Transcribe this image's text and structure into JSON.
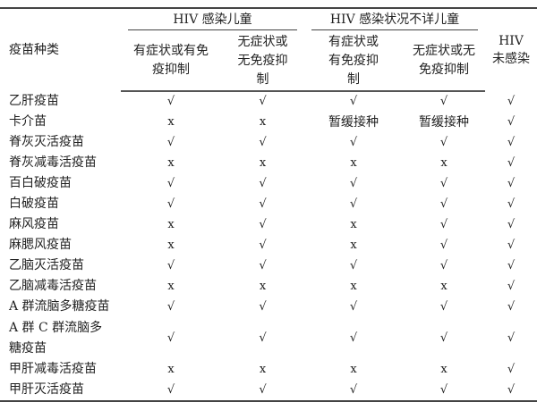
{
  "header": {
    "vaccine_col": "疫苗种类",
    "groups": [
      "HIV 感染儿童",
      "HIV 感染状况不详儿童"
    ],
    "subcols": [
      "有症状或有免疫抑制",
      "无症状或无免疫抑制",
      "有症状或有免疫抑制",
      "无症状或无免疫抑制"
    ],
    "uninfected": "HIV 未感染"
  },
  "rows": [
    {
      "name": "乙肝疫苗",
      "v": [
        "√",
        "√",
        "√",
        "√",
        "√"
      ]
    },
    {
      "name": "卡介苗",
      "v": [
        "x",
        "x",
        "暂缓接种",
        "暂缓接种",
        "√"
      ]
    },
    {
      "name": "脊灰灭活疫苗",
      "v": [
        "√",
        "√",
        "√",
        "√",
        "√"
      ]
    },
    {
      "name": "脊灰减毒活疫苗",
      "v": [
        "x",
        "x",
        "x",
        "x",
        "√"
      ]
    },
    {
      "name": "百白破疫苗",
      "v": [
        "√",
        "√",
        "√",
        "√",
        "√"
      ]
    },
    {
      "name": "白破疫苗",
      "v": [
        "√",
        "√",
        "√",
        "√",
        "√"
      ]
    },
    {
      "name": "麻风疫苗",
      "v": [
        "x",
        "√",
        "x",
        "√",
        "√"
      ]
    },
    {
      "name": "麻腮风疫苗",
      "v": [
        "x",
        "√",
        "x",
        "√",
        "√"
      ]
    },
    {
      "name": "乙脑灭活疫苗",
      "v": [
        "√",
        "√",
        "√",
        "√",
        "√"
      ]
    },
    {
      "name": "乙脑减毒活疫苗",
      "v": [
        "x",
        "x",
        "x",
        "x",
        "√"
      ]
    },
    {
      "name": "A 群流脑多糖疫苗",
      "v": [
        "√",
        "√",
        "√",
        "√",
        "√"
      ]
    },
    {
      "name": "A 群 C 群流脑多糖疫苗",
      "v": [
        "√",
        "√",
        "√",
        "√",
        "√"
      ]
    },
    {
      "name": "甲肝减毒活疫苗",
      "v": [
        "x",
        "x",
        "x",
        "x",
        "√"
      ]
    },
    {
      "name": "甲肝灭活疫苗",
      "v": [
        "√",
        "√",
        "√",
        "√",
        "√"
      ]
    }
  ]
}
